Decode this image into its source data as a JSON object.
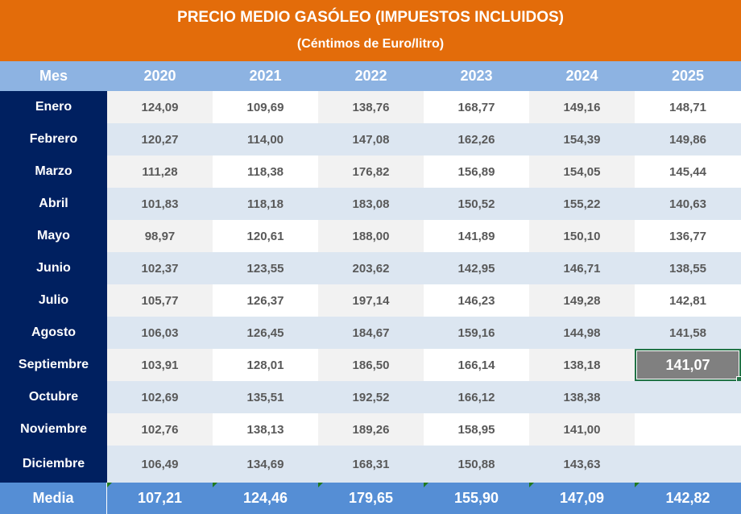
{
  "title": "PRECIO MEDIO GASÓLEO (IMPUESTOS INCLUIDOS)",
  "subtitle": "(Céntimos de Euro/litro)",
  "header": {
    "month_label": "Mes",
    "years": [
      "2020",
      "2021",
      "2022",
      "2023",
      "2024",
      "2025"
    ]
  },
  "rows": [
    {
      "month": "Enero",
      "values": [
        "124,09",
        "109,69",
        "138,76",
        "168,77",
        "149,16",
        "148,71"
      ]
    },
    {
      "month": "Febrero",
      "values": [
        "120,27",
        "114,00",
        "147,08",
        "162,26",
        "154,39",
        "149,86"
      ]
    },
    {
      "month": "Marzo",
      "values": [
        "111,28",
        "118,38",
        "176,82",
        "156,89",
        "154,05",
        "145,44"
      ]
    },
    {
      "month": "Abril",
      "values": [
        "101,83",
        "118,18",
        "183,08",
        "150,52",
        "155,22",
        "140,63"
      ]
    },
    {
      "month": "Mayo",
      "values": [
        "98,97",
        "120,61",
        "188,00",
        "141,89",
        "150,10",
        "136,77"
      ]
    },
    {
      "month": "Junio",
      "values": [
        "102,37",
        "123,55",
        "203,62",
        "142,95",
        "146,71",
        "138,55"
      ]
    },
    {
      "month": "Julio",
      "values": [
        "105,77",
        "126,37",
        "197,14",
        "146,23",
        "149,28",
        "142,81"
      ]
    },
    {
      "month": "Agosto",
      "values": [
        "106,03",
        "126,45",
        "184,67",
        "159,16",
        "144,98",
        "141,58"
      ]
    },
    {
      "month": "Septiembre",
      "values": [
        "103,91",
        "128,01",
        "186,50",
        "166,14",
        "138,18",
        "141,07"
      ]
    },
    {
      "month": "Octubre",
      "values": [
        "102,69",
        "135,51",
        "192,52",
        "166,12",
        "138,38",
        ""
      ]
    },
    {
      "month": "Noviembre",
      "values": [
        "102,76",
        "138,13",
        "189,26",
        "158,95",
        "141,00",
        ""
      ]
    },
    {
      "month": "Diciembre",
      "values": [
        "106,49",
        "134,69",
        "168,31",
        "150,88",
        "143,63",
        ""
      ]
    }
  ],
  "media": {
    "label": "Media",
    "values": [
      "107,21",
      "124,46",
      "179,65",
      "155,90",
      "147,09",
      "142,82"
    ]
  },
  "selected_cell": {
    "month": "Septiembre",
    "year": "2025",
    "value": "141,07"
  },
  "colors": {
    "title_bg": "#e36c0a",
    "header_bg": "#8db3e2",
    "month_col_bg": "#002060",
    "media_bg": "#558ed5",
    "row_alt_bg": "#dce6f1",
    "cell_grey_bg": "#f2f2f2",
    "selected_bg": "#808080",
    "selection_border": "#217346"
  }
}
